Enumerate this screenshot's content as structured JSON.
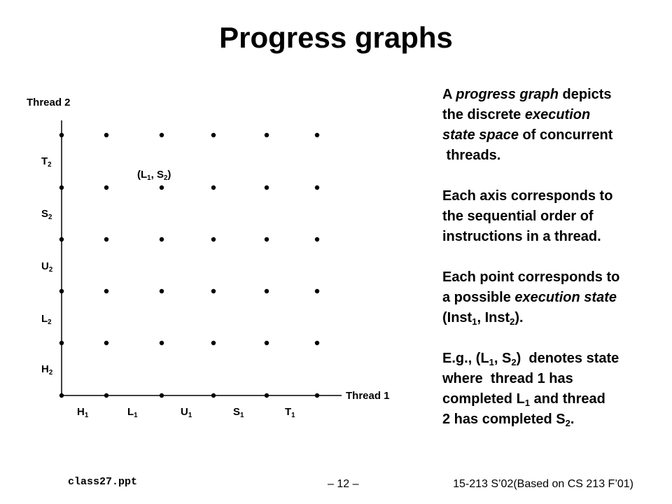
{
  "title": "Progress graphs",
  "diagram": {
    "y_axis": {
      "label": "Thread 2",
      "ticks": [
        {
          "name": "T",
          "sub": "2"
        },
        {
          "name": "S",
          "sub": "2"
        },
        {
          "name": "U",
          "sub": "2"
        },
        {
          "name": "L",
          "sub": "2"
        },
        {
          "name": "H",
          "sub": "2"
        }
      ]
    },
    "x_axis": {
      "label": "Thread 1",
      "ticks": [
        {
          "name": "H",
          "sub": "1"
        },
        {
          "name": "L",
          "sub": "1"
        },
        {
          "name": "U",
          "sub": "1"
        },
        {
          "name": "S",
          "sub": "1"
        },
        {
          "name": "T",
          "sub": "1"
        }
      ]
    },
    "point_label": [
      {
        "text": "(L"
      },
      {
        "text": "1",
        "style": "sub"
      },
      {
        "text": ", S"
      },
      {
        "text": "2",
        "style": "sub"
      },
      {
        "text": ")"
      }
    ]
  },
  "paragraphs": [
    [
      [
        {
          "text": "A "
        },
        {
          "text": "progress graph",
          "style": "italic"
        },
        {
          "text": " depicts"
        }
      ],
      [
        {
          "text": "the discrete "
        },
        {
          "text": "execution",
          "style": "italic"
        }
      ],
      [
        {
          "text": "state space",
          "style": "italic"
        },
        {
          "text": " of concurrent"
        }
      ],
      [
        {
          "text": " threads."
        }
      ]
    ],
    [
      [
        {
          "text": "Each axis corresponds to"
        }
      ],
      [
        {
          "text": "the sequential order of"
        }
      ],
      [
        {
          "text": "instructions in a thread."
        }
      ]
    ],
    [
      [
        {
          "text": "Each point corresponds to"
        }
      ],
      [
        {
          "text": "a possible "
        },
        {
          "text": "execution state",
          "style": "italic"
        }
      ],
      [
        {
          "text": "(Inst"
        },
        {
          "text": "1",
          "style": "sub"
        },
        {
          "text": ", Inst"
        },
        {
          "text": "2",
          "style": "sub"
        },
        {
          "text": ")."
        }
      ]
    ],
    [
      [
        {
          "text": "E.g., (L"
        },
        {
          "text": "1",
          "style": "sub"
        },
        {
          "text": ", S"
        },
        {
          "text": "2",
          "style": "sub"
        },
        {
          "text": ")  denotes state"
        }
      ],
      [
        {
          "text": "where  thread 1 has"
        }
      ],
      [
        {
          "text": "completed L"
        },
        {
          "text": "1",
          "style": "sub"
        },
        {
          "text": " and thread"
        }
      ],
      [
        {
          "text": "2 has completed S"
        },
        {
          "text": "2",
          "style": "sub"
        },
        {
          "text": "."
        }
      ]
    ]
  ],
  "footer": {
    "file": "class27.ppt",
    "page": "– 12 –",
    "course": "15-213 S’02(Based on CS 213 F’01)"
  }
}
